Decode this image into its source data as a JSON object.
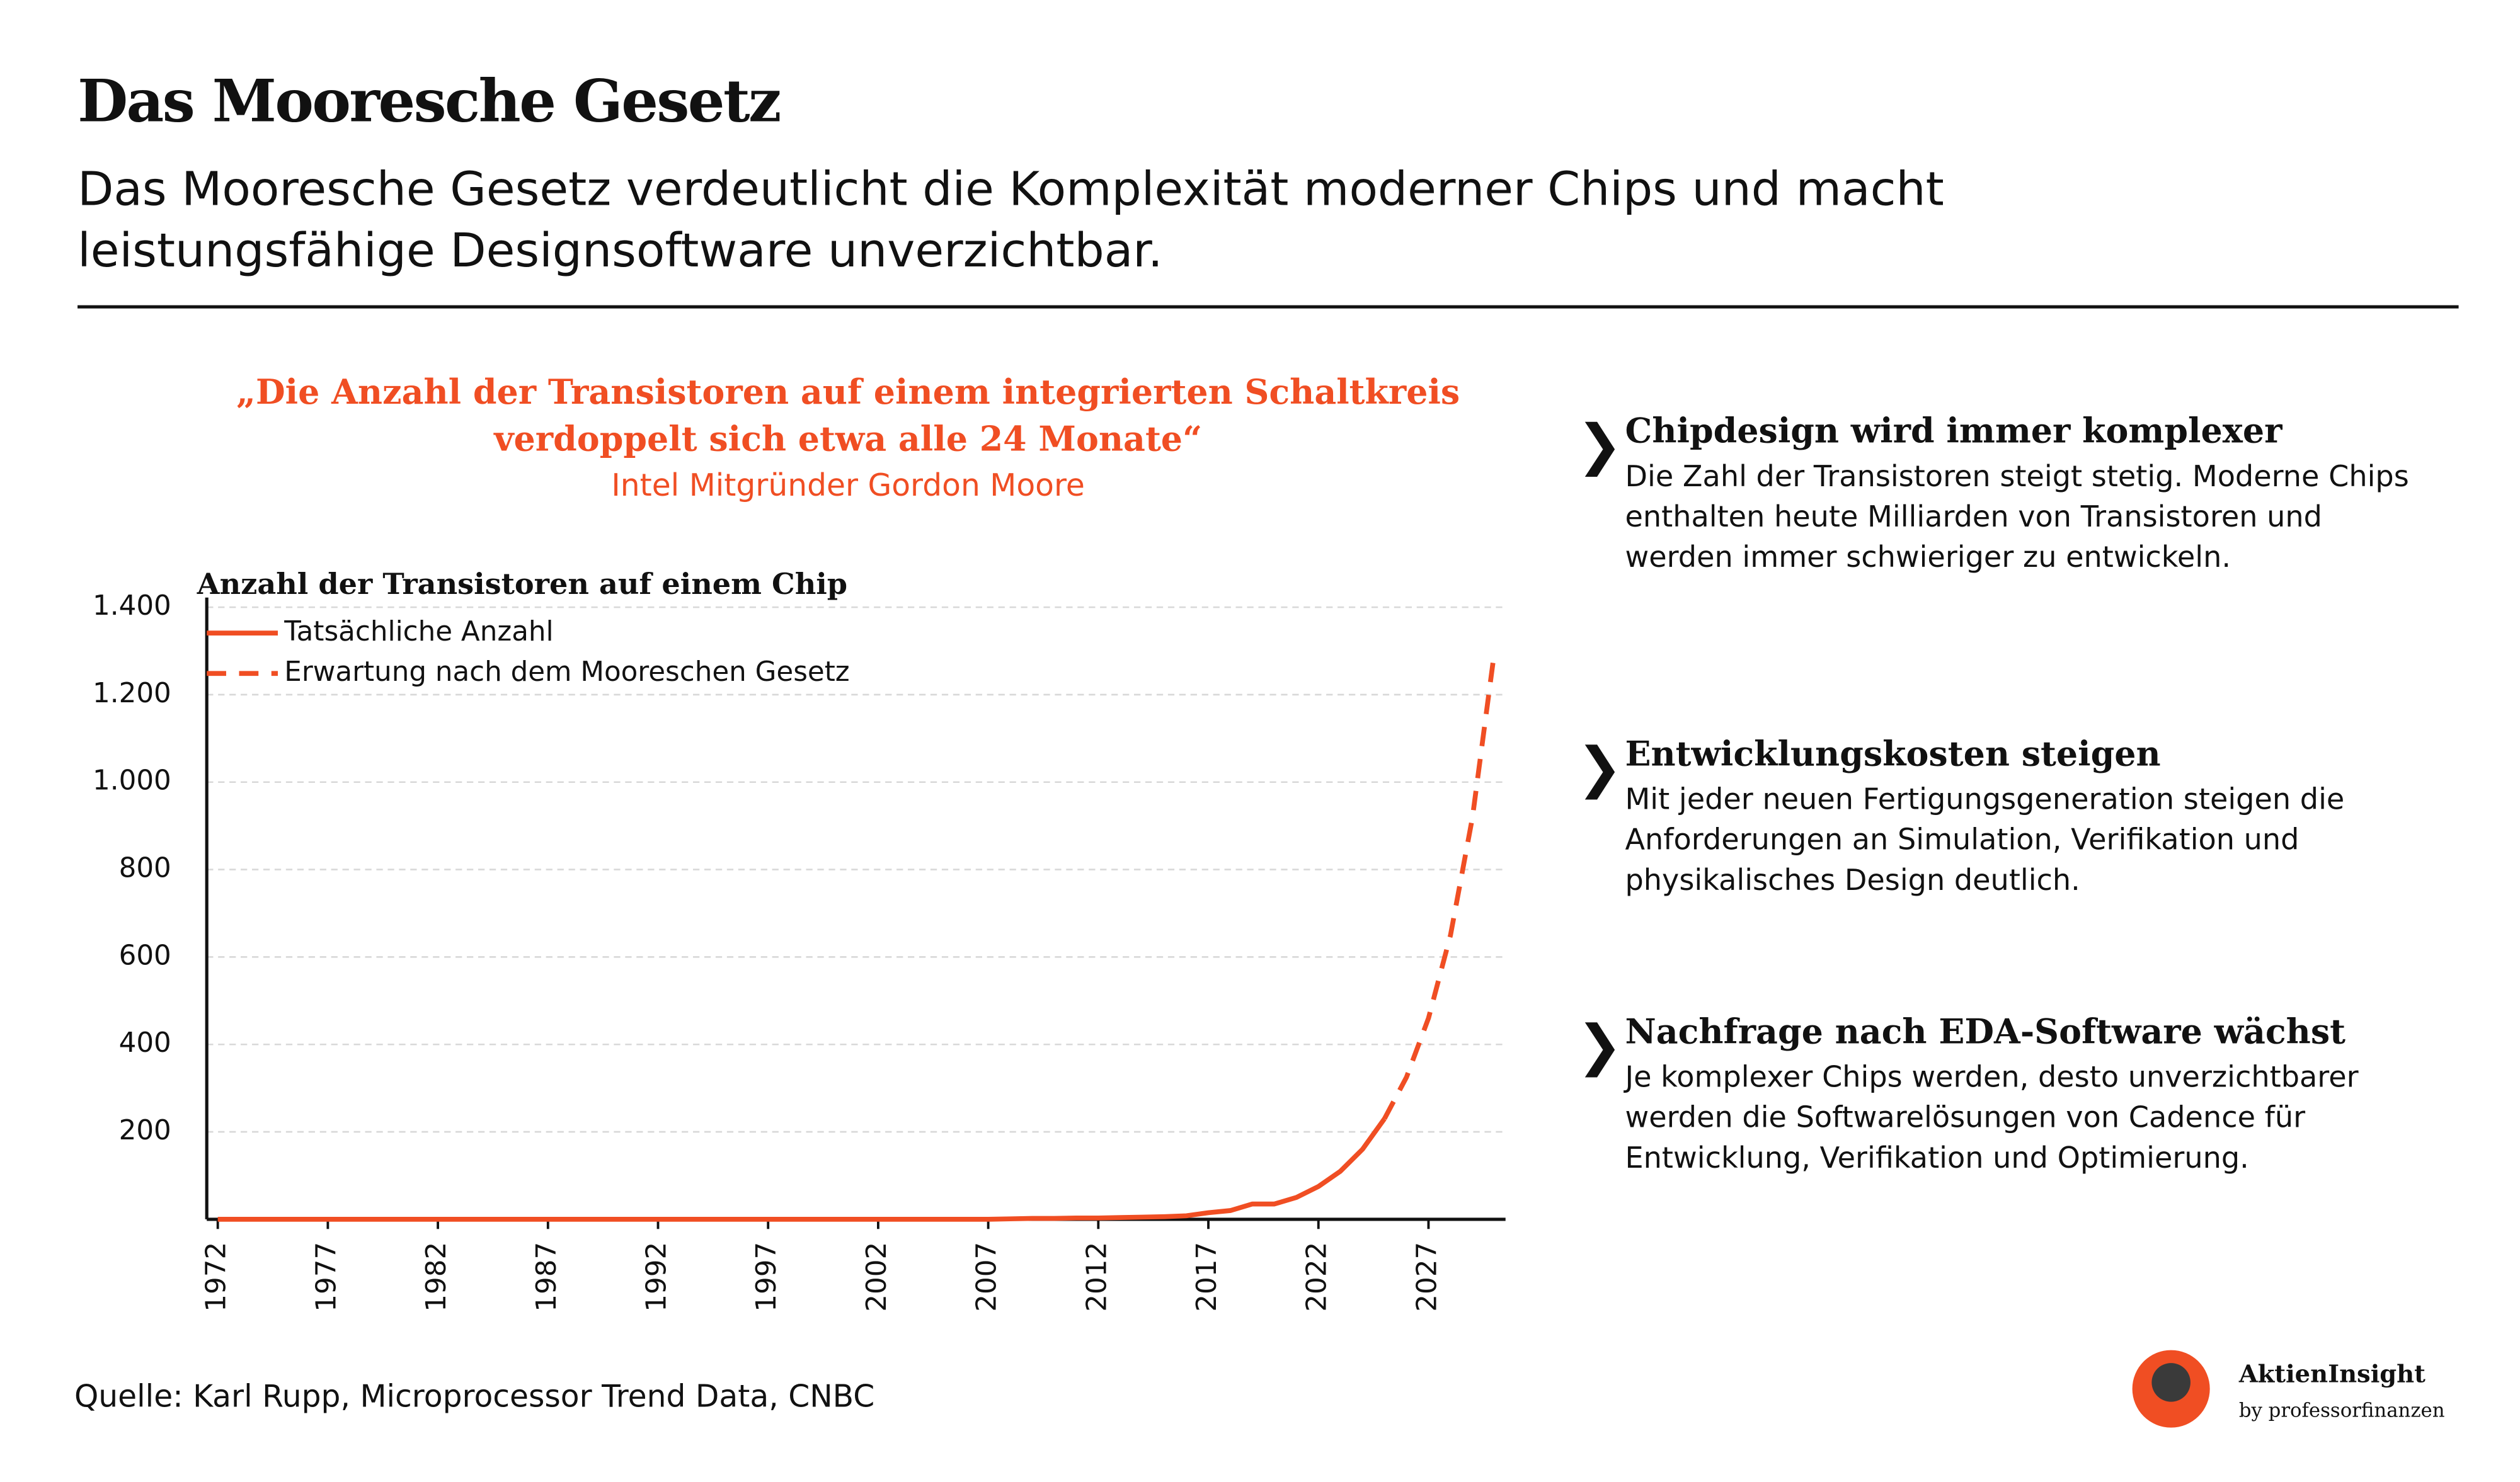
{
  "header": {
    "title": "Das Mooresche Gesetz",
    "subtitle": "Das Mooresche Gesetz verdeutlicht die Komplexität moderner Chips und macht leistungsfähige Designsoftware unverzichtbar."
  },
  "quote": {
    "text": "„Die Anzahl der Transistoren auf einem integrierten Schaltkreis verdoppelt sich etwa alle 24 Monate“",
    "author": "Intel Mitgründer Gordon Moore"
  },
  "chart_data": {
    "type": "line",
    "y_label": "Anzahl der Transistoren auf einem Chip",
    "x": [
      1972,
      1973,
      1974,
      1975,
      1976,
      1977,
      1978,
      1979,
      1980,
      1981,
      1982,
      1983,
      1984,
      1985,
      1986,
      1987,
      1988,
      1989,
      1990,
      1991,
      1992,
      1993,
      1994,
      1995,
      1996,
      1997,
      1998,
      1999,
      2000,
      2001,
      2002,
      2003,
      2004,
      2005,
      2006,
      2007,
      2008,
      2009,
      2010,
      2011,
      2012,
      2013,
      2014,
      2015,
      2016,
      2017,
      2018,
      2019,
      2020,
      2021,
      2022,
      2023,
      2024,
      2025,
      2026,
      2027,
      2028,
      2029,
      2030
    ],
    "series": [
      {
        "name": "Tatsächliche Anzahl",
        "color": "#f04e23",
        "dash": false,
        "values": [
          0,
          0,
          0,
          0,
          0,
          0,
          0,
          0,
          0,
          0,
          0,
          0,
          0,
          0,
          0,
          0,
          0,
          0,
          0,
          0,
          0,
          0,
          0,
          0,
          0,
          0,
          0,
          0,
          0,
          0,
          0,
          0,
          0,
          0,
          0,
          0,
          1,
          2,
          2,
          3,
          3,
          4,
          5,
          6,
          8,
          15,
          20,
          35,
          35,
          50,
          75,
          110,
          160,
          230,
          null,
          null,
          null,
          null,
          null
        ]
      },
      {
        "name": "Erwartung nach dem Mooreschen Gesetz",
        "color": "#f04e23",
        "dash": true,
        "values": [
          null,
          null,
          null,
          null,
          null,
          null,
          null,
          null,
          null,
          null,
          null,
          null,
          null,
          null,
          null,
          null,
          null,
          null,
          null,
          null,
          null,
          null,
          null,
          null,
          null,
          null,
          null,
          null,
          null,
          null,
          null,
          null,
          null,
          null,
          null,
          null,
          null,
          null,
          null,
          null,
          null,
          null,
          null,
          null,
          null,
          null,
          null,
          null,
          null,
          null,
          null,
          null,
          null,
          230,
          325,
          460,
          650,
          920,
          1300
        ]
      }
    ],
    "xlim": [
      1971.5,
      2030.5
    ],
    "xticks": [
      1972,
      1977,
      1982,
      1987,
      1992,
      1997,
      2002,
      2007,
      2012,
      2017,
      2022,
      2027
    ],
    "ylim": [
      0,
      1400
    ],
    "yticks": [
      200,
      400,
      600,
      800,
      {
        "value": 1000,
        "label": "1.000"
      },
      {
        "value": 1200,
        "label": "1.200"
      },
      {
        "value": 1400,
        "label": "1.400"
      }
    ],
    "grid": true,
    "legend": "top-left"
  },
  "points": [
    {
      "title": "Chipdesign wird immer komplexer",
      "text": "Die Zahl der Transistoren steigt stetig. Moderne Chips enthalten heute Milliarden von Transistoren und werden immer schwieriger zu entwickeln."
    },
    {
      "title": "Entwicklungskosten steigen",
      "text": "Mit jeder neuen Fertigungsgeneration steigen die Anforderungen an Simulation, Verifikation und physikalisches Design deutlich."
    },
    {
      "title": "Nachfrage nach EDA-Software wächst",
      "text": "Je komplexer Chips werden, desto unverzichtbarer werden die Softwarelösungen von Cadence für Entwicklung, Verifikation und Optimierung."
    }
  ],
  "source": "Quelle: Karl Rupp, Microprocessor Trend Data, CNBC",
  "brand": {
    "name": "AktienInsight",
    "by": "by professorfinanzen"
  }
}
